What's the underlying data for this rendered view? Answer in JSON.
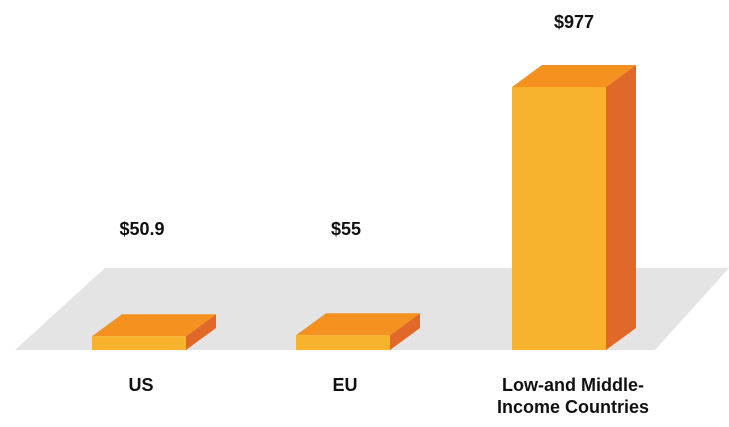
{
  "chart_data": {
    "type": "bar3d",
    "categories": [
      "US",
      "EU",
      "Low-and Middle-Income Countries"
    ],
    "values": [
      50.9,
      55,
      977
    ],
    "value_labels": [
      "$50.9",
      "$55",
      "$977"
    ],
    "colors": {
      "front": "#f9b22b",
      "top": "#f5911e",
      "side": "#e0692a"
    }
  }
}
